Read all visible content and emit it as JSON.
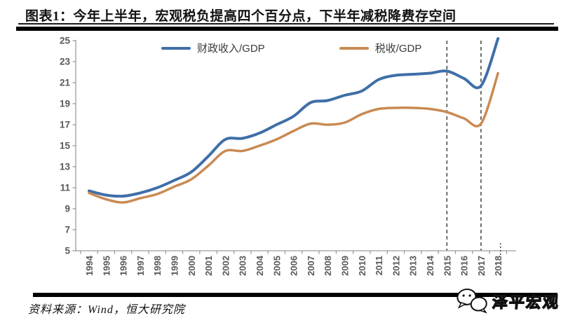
{
  "header": {
    "title": "图表1：今年上半年，宏观税负提高四个百分点，下半年减税降费存空间"
  },
  "footer": {
    "source": "资料来源：Wind，恒大研究院",
    "watermark_text": "泽平宏观"
  },
  "chart_data": {
    "type": "line",
    "title": "",
    "xlabel": "",
    "ylabel": "",
    "x": [
      1994,
      1995,
      1996,
      1997,
      1998,
      1999,
      2000,
      2001,
      2002,
      2003,
      2004,
      2005,
      2006,
      2007,
      2008,
      2009,
      2010,
      2011,
      2012,
      2013,
      2014,
      2015,
      2016,
      2017,
      2018
    ],
    "series": [
      {
        "name": "财政收入/GDP",
        "color": "#3f6fa8",
        "values": [
          10.7,
          10.3,
          10.2,
          10.5,
          11.0,
          11.7,
          12.5,
          14.0,
          15.6,
          15.7,
          16.2,
          17.0,
          17.8,
          19.1,
          19.3,
          19.8,
          20.2,
          21.3,
          21.7,
          21.8,
          21.9,
          22.1,
          21.4,
          20.7,
          25.2
        ]
      },
      {
        "name": "税收/GDP",
        "color": "#c98a52",
        "values": [
          10.5,
          9.9,
          9.6,
          10.0,
          10.4,
          11.1,
          11.8,
          13.1,
          14.5,
          14.5,
          15.0,
          15.6,
          16.4,
          17.1,
          17.0,
          17.2,
          18.0,
          18.5,
          18.6,
          18.6,
          18.5,
          18.2,
          17.6,
          17.1,
          21.9
        ]
      }
    ],
    "ylim": [
      5,
      25
    ],
    "ytick_step": 2,
    "yticks": [
      5,
      7,
      9,
      11,
      13,
      15,
      17,
      19,
      21,
      23,
      25
    ],
    "guide_lines_x": [
      2015,
      2017
    ],
    "x_continuation_marker": 2018,
    "legend_position": "top",
    "grid": false
  },
  "style": {
    "axis_color": "#9b9b9b",
    "tick_label_color": "#595959",
    "guide_color": "#4d4d4d",
    "rule_color": "#000000"
  }
}
